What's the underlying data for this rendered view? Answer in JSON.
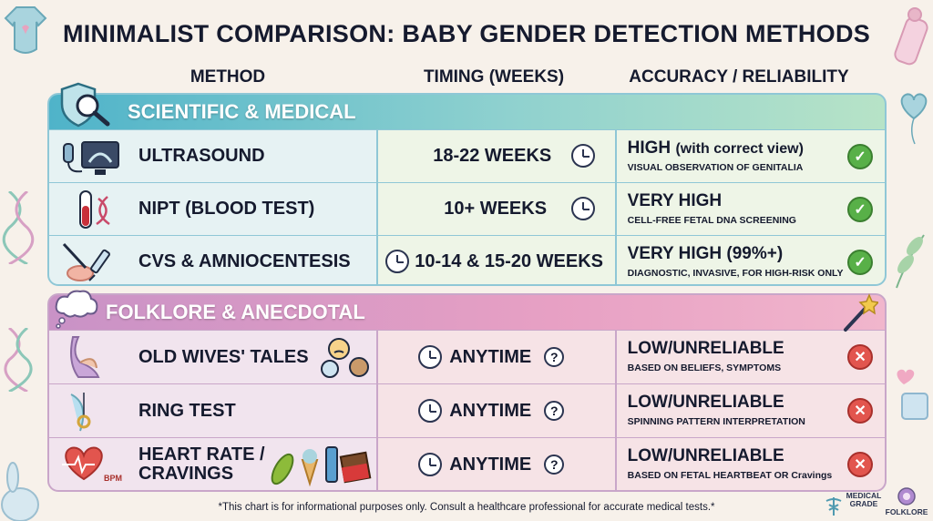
{
  "title": "MINIMALIST COMPARISON: BABY GENDER DETECTION METHODS",
  "columns": {
    "method": "METHOD",
    "timing": "TIMING (WEEKS)",
    "accuracy": "ACCURACY / RELIABILITY"
  },
  "sections": [
    {
      "label": "SCIENTIFIC & MEDICAL",
      "icon": "shield-magnifier-icon",
      "rows": [
        {
          "method": "ULTRASOUND",
          "icon": "ultrasound-monitor-icon",
          "timing": "18-22 WEEKS",
          "accuracy_main": "HIGH",
          "accuracy_extra": "(with correct view)",
          "accuracy_sub": "VISUAL OBSERVATION OF GENITALIA",
          "status": "check"
        },
        {
          "method": "NIPT (BLOOD TEST)",
          "icon": "blood-tube-dna-icon",
          "timing": "10+ WEEKS",
          "accuracy_main": "VERY HIGH",
          "accuracy_extra": "",
          "accuracy_sub": "CELL-FREE FETAL DNA SCREENING",
          "status": "check"
        },
        {
          "method": "CVS & AMNIOCENTESIS",
          "icon": "syringe-icon",
          "timing": "10-14 & 15-20 WEEKS",
          "accuracy_main": "VERY HIGH (99%+)",
          "accuracy_extra": "",
          "accuracy_sub": "DIAGNOSTIC, INVASIVE, FOR HIGH-RISK ONLY",
          "status": "check"
        }
      ]
    },
    {
      "label": "FOLKLORE & ANECDOTAL",
      "icon": "thought-cloud-icon",
      "rows": [
        {
          "method": "OLD WIVES' TALES",
          "icon": "pregnant-belly-icon",
          "timing": "ANYTIME",
          "accuracy_main": "LOW/UNRELIABLE",
          "accuracy_extra": "",
          "accuracy_sub": "BASED ON BELIEFS, SYMPTOMS",
          "status": "cross"
        },
        {
          "method": "RING TEST",
          "icon": "ring-pendulum-icon",
          "timing": "ANYTIME",
          "accuracy_main": "LOW/UNRELIABLE",
          "accuracy_extra": "",
          "accuracy_sub": "SPINNING PATTERN INTERPRETATION",
          "status": "cross"
        },
        {
          "method": "HEART RATE / CRAVINGS",
          "method_line1": "HEART RATE /",
          "method_line2": "CRAVINGS",
          "icon": "heart-bpm-icon",
          "icon_label": "BPM",
          "timing": "ANYTIME",
          "accuracy_main": "LOW/UNRELIABLE",
          "accuracy_extra": "",
          "accuracy_sub": "BASED ON FETAL HEARTBEAT OR Cravings",
          "status": "cross"
        }
      ]
    }
  ],
  "footnote": "*This chart is for informational purposes only. Consult a healthcare professional for accurate medical tests.*",
  "brands": {
    "medical_line1": "MEDICAL",
    "medical_line2": "GRADE",
    "folklore": "FOLKLORE"
  },
  "colors": {
    "check": "#58b048",
    "cross": "#e2554e",
    "scientific": "#4fb3c9",
    "folklore": "#c992c6"
  }
}
